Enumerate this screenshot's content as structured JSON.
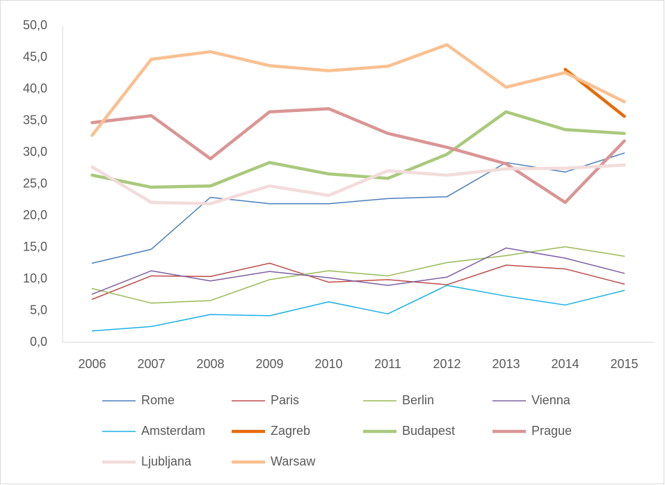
{
  "chart_data": {
    "type": "line",
    "x": [
      "2006",
      "2007",
      "2008",
      "2009",
      "2010",
      "2011",
      "2012",
      "2013",
      "2014",
      "2015"
    ],
    "ylim": [
      0,
      50
    ],
    "yticks": [
      {
        "value": 0,
        "label": "0,0"
      },
      {
        "value": 5,
        "label": "5,0"
      },
      {
        "value": 10,
        "label": "10,0"
      },
      {
        "value": 15,
        "label": "15,0"
      },
      {
        "value": 20,
        "label": "20,0"
      },
      {
        "value": 25,
        "label": "25,0"
      },
      {
        "value": 30,
        "label": "30,0"
      },
      {
        "value": 35,
        "label": "35,0"
      },
      {
        "value": 40,
        "label": "40,0"
      },
      {
        "value": 45,
        "label": "45,0"
      },
      {
        "value": 50,
        "label": "50,0"
      }
    ],
    "grid": false,
    "legend": "bottom",
    "series": [
      {
        "name": "Rome",
        "color": "#4a7ebb",
        "line_width": 1.5,
        "values": [
          12.5,
          14.7,
          22.9,
          21.9,
          21.9,
          22.7,
          23.0,
          28.4,
          26.9,
          29.9
        ]
      },
      {
        "name": "Paris",
        "color": "#be4b48",
        "line_width": 1.5,
        "values": [
          6.8,
          10.5,
          10.4,
          12.5,
          9.5,
          9.9,
          9.1,
          12.2,
          11.6,
          9.2
        ]
      },
      {
        "name": "Berlin",
        "color": "#98b954",
        "line_width": 1.5,
        "values": [
          8.5,
          6.2,
          6.6,
          9.9,
          11.3,
          10.5,
          12.6,
          13.7,
          15.1,
          13.6
        ]
      },
      {
        "name": "Vienna",
        "color": "#7d60a0",
        "line_width": 1.5,
        "values": [
          7.6,
          11.3,
          9.7,
          11.2,
          10.2,
          9.0,
          10.3,
          14.9,
          13.3,
          10.9
        ]
      },
      {
        "name": "Amsterdam",
        "color": "#1ab0e6",
        "line_width": 1.5,
        "values": [
          1.8,
          2.5,
          4.4,
          4.2,
          6.4,
          4.5,
          9.0,
          7.3,
          5.9,
          8.2
        ]
      },
      {
        "name": "Zagreb",
        "color": "#e46c0a",
        "line_width": 4.5,
        "values": [
          null,
          null,
          null,
          null,
          null,
          null,
          null,
          null,
          43.1,
          35.7
        ]
      },
      {
        "name": "Budapest",
        "color": "#a9c97c",
        "line_width": 4.5,
        "values": [
          26.4,
          24.5,
          24.7,
          28.4,
          26.6,
          25.9,
          29.7,
          36.4,
          33.6,
          33.0
        ]
      },
      {
        "name": "Prague",
        "color": "#d99594",
        "line_width": 4.5,
        "values": [
          34.7,
          35.8,
          29.0,
          36.4,
          36.9,
          33.0,
          30.8,
          28.2,
          22.1,
          31.8
        ]
      },
      {
        "name": "Ljubljana",
        "color": "#f2dcdb",
        "line_width": 4.5,
        "values": [
          27.7,
          22.1,
          21.9,
          24.7,
          23.2,
          27.1,
          26.4,
          27.4,
          27.5,
          28.0
        ]
      },
      {
        "name": "Warsaw",
        "color": "#fac090",
        "line_width": 4.5,
        "values": [
          32.7,
          44.7,
          45.9,
          43.7,
          42.9,
          43.6,
          47.0,
          40.3,
          42.6,
          38.0
        ]
      }
    ]
  }
}
